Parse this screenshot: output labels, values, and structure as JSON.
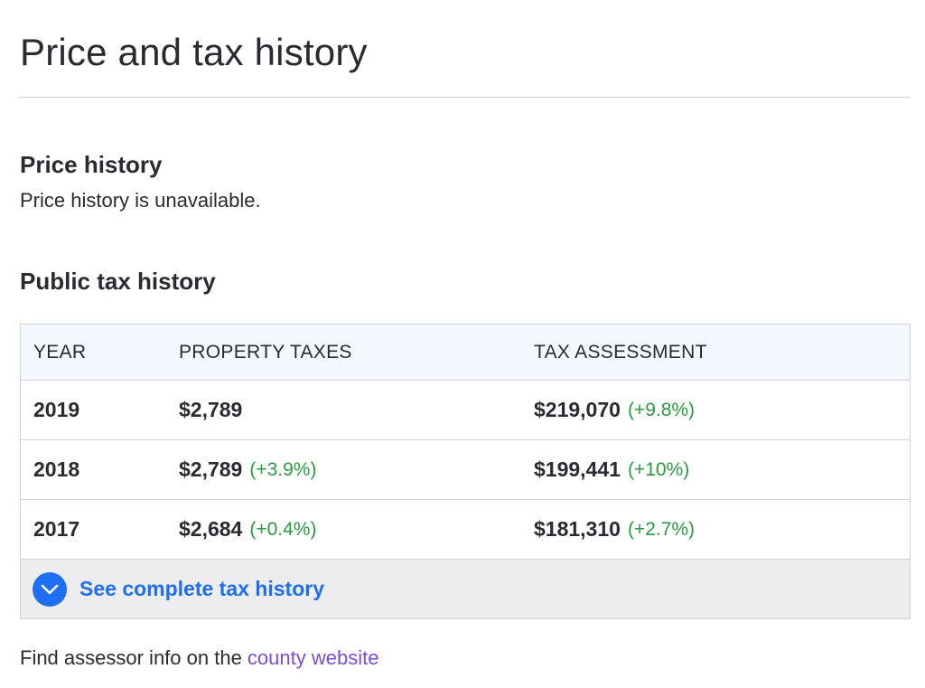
{
  "page": {
    "title": "Price and tax history"
  },
  "price_history": {
    "heading": "Price history",
    "message": "Price history is unavailable."
  },
  "tax_history": {
    "heading": "Public tax history",
    "columns": {
      "year": "YEAR",
      "taxes": "PROPERTY TAXES",
      "assessment": "TAX ASSESSMENT"
    },
    "rows": [
      {
        "year": "2019",
        "taxes": "$2,789",
        "taxes_change": "",
        "assessment": "$219,070",
        "assessment_change": "(+9.8%)"
      },
      {
        "year": "2018",
        "taxes": "$2,789",
        "taxes_change": "(+3.9%)",
        "assessment": "$199,441",
        "assessment_change": "(+10%)"
      },
      {
        "year": "2017",
        "taxes": "$2,684",
        "taxes_change": "(+0.4%)",
        "assessment": "$181,310",
        "assessment_change": "(+2.7%)"
      }
    ],
    "see_more_label": "See complete tax history",
    "see_more_icon": "chevron-down-icon"
  },
  "assessor": {
    "prefix": "Find assessor info on the ",
    "link_label": "county website"
  },
  "colors": {
    "text": "#2a2a33",
    "positive_change": "#2b9a3e",
    "link_blue": "#1e6ff5",
    "link_purple": "#7a4ed1",
    "header_bg": "#f2f8fd",
    "footer_bg": "#ededf0"
  }
}
